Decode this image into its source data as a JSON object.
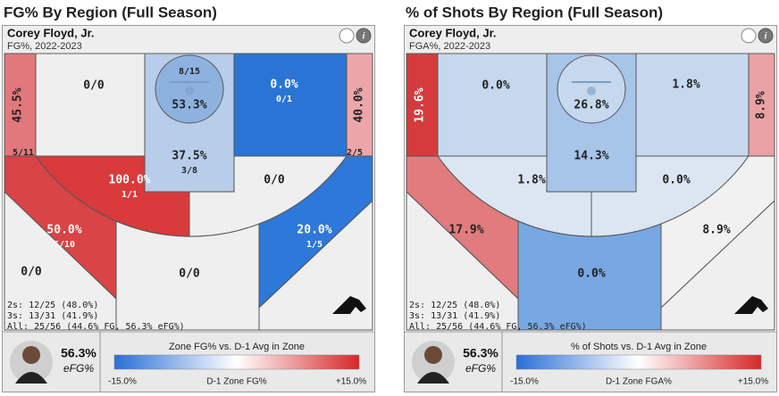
{
  "panels": [
    {
      "title": "FG% By Region (Full Season)",
      "name": "Corey Floyd, Jr.",
      "subtitle": "FG%, 2022-2023",
      "zones": [
        {
          "label": "45.5%",
          "sub": "5/11",
          "color": "#e2787c"
        },
        {
          "label": "0/0",
          "color": "#efefef"
        },
        {
          "label": "53.3%",
          "sub": "8/15",
          "color": "#8eb2df"
        },
        {
          "label": "37.5%",
          "sub": "3/8",
          "color": "#b7cde9"
        },
        {
          "label": "0.0%",
          "sub": "0/1",
          "color": "#2a74d5"
        },
        {
          "label": "40.0%",
          "sub": "2/5",
          "color": "#eca6aa"
        },
        {
          "label": "100.0%",
          "sub": "1/1",
          "color": "#d93a3c"
        },
        {
          "label": "0/0",
          "color": "#efefef"
        },
        {
          "label": "50.0%",
          "sub": "5/10",
          "color": "#d94446"
        },
        {
          "label": "0/0",
          "color": "#efefef"
        },
        {
          "label": "0/0",
          "color": "#efefef"
        },
        {
          "label": "20.0%",
          "sub": "1/5",
          "color": "#2d78d8"
        },
        {
          "color": "#efefef"
        }
      ],
      "stats": [
        "2s: 12/25 (48.0%)",
        "3s: 13/31 (41.9%)",
        "All: 25/56 (44.6% FG, 56.3% eFG%)"
      ],
      "efg": "56.3%",
      "efg_label": "eFG%",
      "legend": {
        "title": "Zone FG% vs. D-1 Avg in Zone",
        "min": "-15.0%",
        "axis": "D-1 Zone FG%",
        "max": "+15.0%",
        "colors": [
          "#2a6fd6",
          "#ffffff",
          "#d62828"
        ]
      }
    },
    {
      "title": "% of Shots By Region (Full Season)",
      "name": "Corey Floyd, Jr.",
      "subtitle": "FGA%, 2022-2023",
      "zones": [
        {
          "label": "19.6%",
          "color": "#d53b3d"
        },
        {
          "label": "0.0%",
          "color": "#c6d8ee"
        },
        {
          "label": "26.8%",
          "color": "#c6d8ee"
        },
        {
          "label": "14.3%",
          "color": "#a7c4e9"
        },
        {
          "label": "1.8%",
          "color": "#c6d8ee"
        },
        {
          "label": "8.9%",
          "color": "#e9a1a4"
        },
        {
          "label": "1.8%",
          "color": "#dce6f2"
        },
        {
          "label": "0.0%",
          "color": "#dce6f2"
        },
        {
          "label": "17.9%",
          "color": "#e17b7d"
        },
        {
          "color": "#efefef"
        },
        {
          "label": "0.0%",
          "color": "#78a8e2"
        },
        {
          "label": "8.9%",
          "color": "#f1f1f1"
        },
        {
          "color": "#efefef"
        }
      ],
      "stats": [
        "2s: 12/25 (48.0%)",
        "3s: 13/31 (41.9%)",
        "All: 25/56 (44.6% FG, 56.3% eFG%)"
      ],
      "efg": "56.3%",
      "efg_label": "eFG%",
      "legend": {
        "title": "% of Shots vs. D-1 Avg in Zone",
        "min": "-15.0%",
        "axis": "D-1 Zone FGA%",
        "max": "+15.0%",
        "colors": [
          "#2a6fd6",
          "#ffffff",
          "#d62828"
        ]
      }
    }
  ]
}
